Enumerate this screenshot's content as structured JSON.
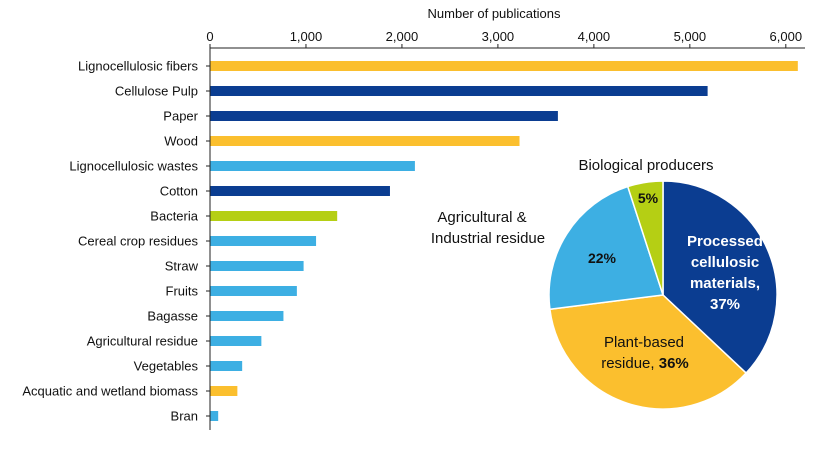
{
  "colors": {
    "yellow": "#FBBF2E",
    "dark_blue": "#0B3D91",
    "light_blue": "#3DAFE3",
    "lime": "#B5CF14"
  },
  "chart_data": [
    {
      "type": "bar",
      "orientation": "horizontal",
      "xlabel": "Number of publications",
      "xlim": [
        0,
        6200
      ],
      "xticks": [
        0,
        1000,
        2000,
        3000,
        4000,
        5000,
        6000
      ],
      "xtick_labels": [
        "0",
        "1,000",
        "2,000",
        "3,000",
        "4,000",
        "5,000",
        "6,000"
      ],
      "axis_position": "top",
      "categories": [
        "Lignocellulosic fibers",
        "Cellulose Pulp",
        "Paper",
        "Wood",
        "Lignocellulosic wastes",
        "Cotton",
        "Bacteria",
        "Cereal crop residues",
        "Straw",
        "Fruits",
        "Bagasse",
        "Agricultural residue",
        "Vegetables",
        "Acquatic and wetland biomass",
        "Bran"
      ],
      "values": [
        6120,
        5180,
        3620,
        3220,
        2130,
        1870,
        1320,
        1100,
        970,
        900,
        760,
        530,
        330,
        280,
        80
      ],
      "bar_colors": [
        "#FBBF2E",
        "#0B3D91",
        "#0B3D91",
        "#FBBF2E",
        "#3DAFE3",
        "#0B3D91",
        "#B5CF14",
        "#3DAFE3",
        "#3DAFE3",
        "#3DAFE3",
        "#3DAFE3",
        "#3DAFE3",
        "#3DAFE3",
        "#FBBF2E",
        "#3DAFE3"
      ],
      "grid": false
    },
    {
      "type": "pie",
      "slices": [
        {
          "label": "Processed cellulosic materials,",
          "value": 37,
          "value_label": "37%",
          "color": "#0B3D91"
        },
        {
          "label": "Plant-based residue,",
          "value": 36,
          "value_label": "36%",
          "color": "#FBBF2E"
        },
        {
          "label": "",
          "value": 22,
          "value_label": "22%",
          "color": "#3DAFE3"
        },
        {
          "label": "",
          "value": 5,
          "value_label": "5%",
          "color": "#B5CF14"
        }
      ],
      "outside_labels": {
        "biological": "Biological producers",
        "agri_line1": "Agricultural &",
        "agri_line2": "Industrial residue"
      },
      "inside_label_lines": {
        "processed": [
          "Processed",
          "cellulosic",
          "materials,",
          "37%"
        ],
        "plant": [
          "Plant-based",
          "residue, "
        ]
      }
    }
  ]
}
